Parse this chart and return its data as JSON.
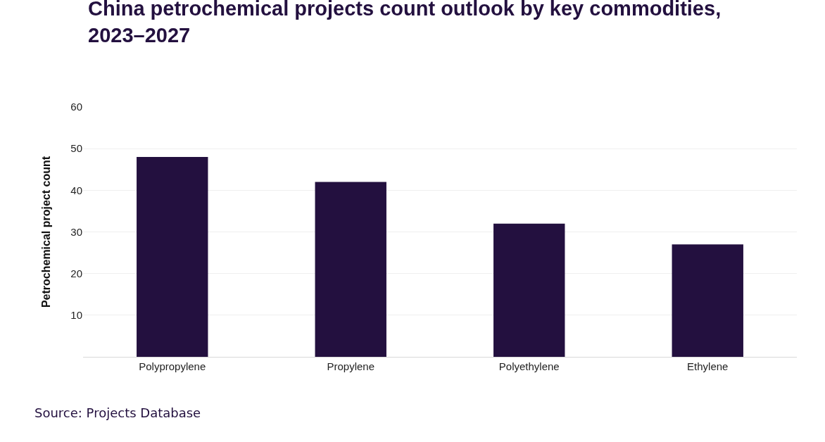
{
  "chart_data": {
    "type": "bar",
    "title": "China petrochemical projects count outlook by key commodities, 2023–2027",
    "ylabel": "Petrochemical project count",
    "categories": [
      "Polypropylene",
      "Propylene",
      "Polyethylene",
      "Ethylene"
    ],
    "values": [
      48,
      42,
      32,
      27
    ],
    "color": "#23103f",
    "ylim": [
      0,
      60
    ],
    "yticks": [
      10,
      20,
      30,
      40,
      50,
      60
    ],
    "grid": "y",
    "annotations": [
      "Source: Projects Database"
    ]
  }
}
